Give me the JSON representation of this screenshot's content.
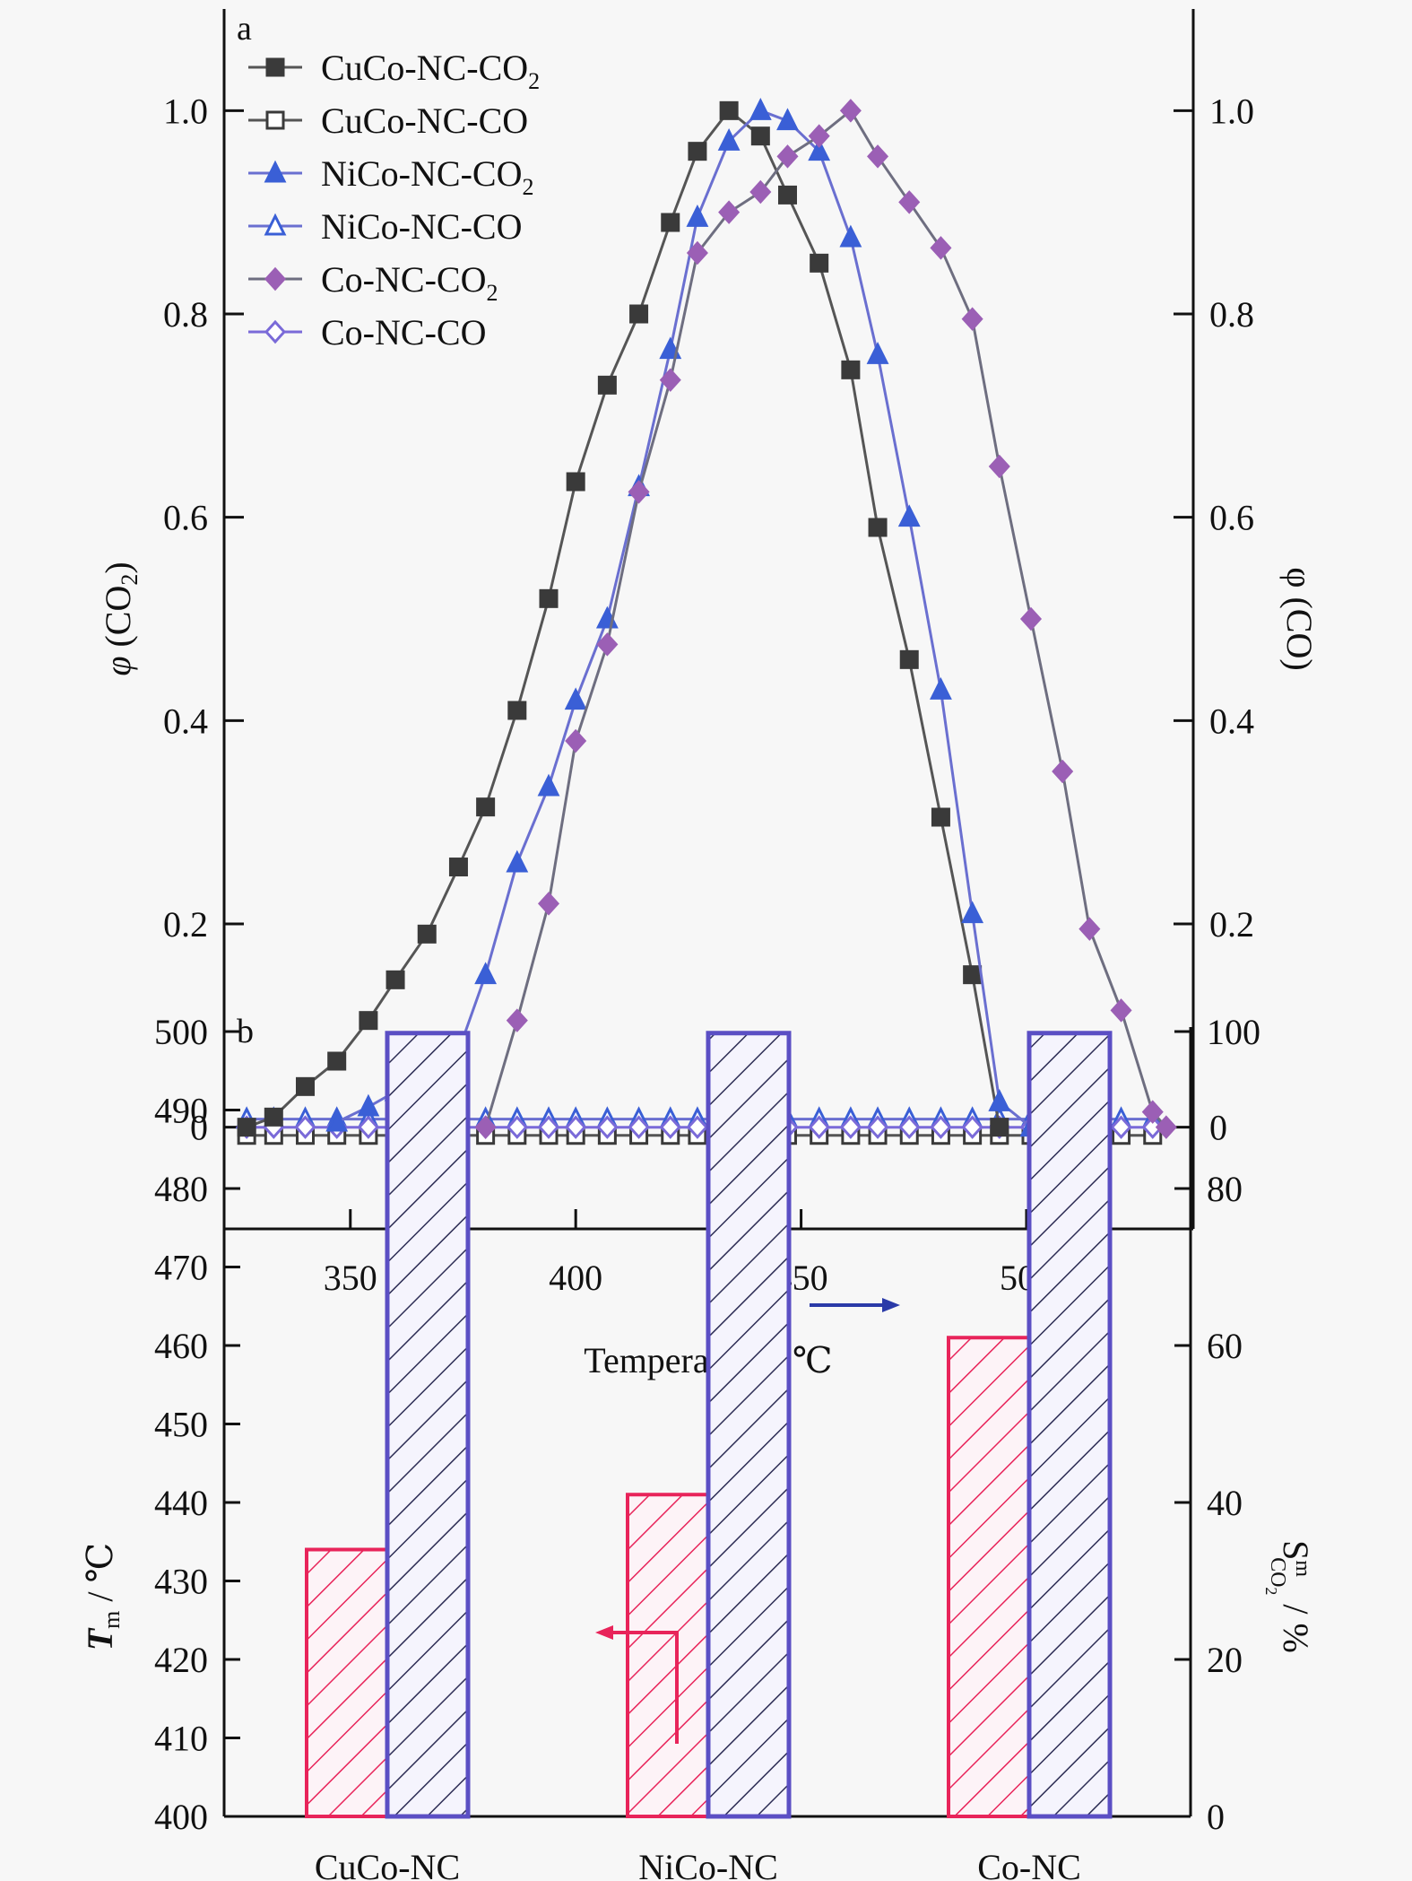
{
  "chart_data": [
    {
      "panel": "a",
      "type": "line",
      "title": "",
      "xlabel": "Temperature / ℃",
      "ylabel": "φ (CO2)",
      "ylabel_parts": {
        "sym": "φ",
        "base": " (CO",
        "sub": "2",
        "end": ")"
      },
      "y2label": "φ (CO)",
      "xlim": [
        322,
        537
      ],
      "ylim": [
        -0.1,
        1.1
      ],
      "y2lim": [
        -0.1,
        1.1
      ],
      "xticks": [
        "350",
        "400",
        "450",
        "500"
      ],
      "xtick_values": [
        350,
        400,
        450,
        500
      ],
      "yticks": [
        "0",
        "0.2",
        "0.4",
        "0.6",
        "0.8",
        "1.0"
      ],
      "ytick_values": [
        0,
        0.2,
        0.4,
        0.6,
        0.8,
        1.0
      ],
      "y2ticks": [
        "0",
        "0.2",
        "0.4",
        "0.6",
        "0.8",
        "1.0"
      ],
      "grid": false,
      "legend_position": "top-left",
      "series": [
        {
          "name": "CuCo-NC-CO2",
          "label_base": "CuCo-NC-CO",
          "label_sub": "2",
          "marker": "square",
          "filled": true,
          "color": "#3a3a3a",
          "line": "#555555",
          "axis": "left",
          "x": [
            327,
            333,
            340,
            347,
            354,
            360,
            367,
            374,
            380,
            387,
            394,
            400,
            407,
            414,
            421,
            427,
            434,
            441,
            447,
            454,
            461,
            467,
            474,
            481,
            488,
            494
          ],
          "y": [
            0.0,
            0.01,
            0.04,
            0.065,
            0.105,
            0.145,
            0.19,
            0.256,
            0.315,
            0.41,
            0.52,
            0.635,
            0.73,
            0.8,
            0.89,
            0.96,
            1.0,
            0.975,
            0.917,
            0.85,
            0.745,
            0.59,
            0.46,
            0.305,
            0.15,
            0.0
          ]
        },
        {
          "name": "CuCo-NC-CO",
          "label_base": "CuCo-NC-CO",
          "label_sub": "",
          "marker": "square",
          "filled": false,
          "color": "#3a3a3a",
          "line": "#555555",
          "axis": "right",
          "x": [
            327,
            333,
            340,
            347,
            354,
            360,
            367,
            374,
            380,
            387,
            394,
            400,
            407,
            414,
            421,
            427,
            434,
            441,
            447,
            454,
            461,
            467,
            474,
            481,
            488,
            494,
            501,
            508,
            514,
            521,
            528
          ],
          "y": [
            -0.008,
            -0.008,
            -0.008,
            -0.008,
            -0.008,
            -0.008,
            -0.008,
            -0.008,
            -0.008,
            -0.008,
            -0.008,
            -0.008,
            -0.008,
            -0.008,
            -0.008,
            -0.008,
            -0.008,
            -0.008,
            -0.008,
            -0.008,
            -0.008,
            -0.008,
            -0.008,
            -0.008,
            -0.008,
            -0.008,
            -0.008,
            -0.008,
            -0.008,
            -0.008,
            -0.008
          ]
        },
        {
          "name": "NiCo-NC-CO2",
          "label_base": "NiCo-NC-CO",
          "label_sub": "2",
          "marker": "triangle",
          "filled": true,
          "color": "#3a5fd6",
          "line": "#6a6fd0",
          "axis": "left",
          "x": [
            347,
            354,
            360,
            367,
            374,
            380,
            387,
            394,
            400,
            407,
            414,
            421,
            427,
            434,
            441,
            447,
            454,
            461,
            467,
            474,
            481,
            488,
            494,
            501
          ],
          "y": [
            0.005,
            0.02,
            0.035,
            0.045,
            0.075,
            0.15,
            0.26,
            0.335,
            0.42,
            0.5,
            0.63,
            0.765,
            0.895,
            0.97,
            1.0,
            0.99,
            0.96,
            0.875,
            0.76,
            0.6,
            0.43,
            0.21,
            0.025,
            0.0
          ]
        },
        {
          "name": "NiCo-NC-CO",
          "label_base": "NiCo-NC-CO",
          "label_sub": "",
          "marker": "triangle",
          "filled": false,
          "color": "#3a5fd6",
          "line": "#6a6fd0",
          "axis": "right",
          "x": [
            327,
            333,
            340,
            347,
            354,
            360,
            367,
            374,
            380,
            387,
            394,
            400,
            407,
            414,
            421,
            427,
            434,
            441,
            447,
            454,
            461,
            467,
            474,
            481,
            488,
            494,
            501,
            508,
            514,
            521,
            528
          ],
          "y": [
            0.008,
            0.008,
            0.008,
            0.008,
            0.008,
            0.008,
            0.008,
            0.008,
            0.008,
            0.008,
            0.008,
            0.008,
            0.008,
            0.008,
            0.008,
            0.008,
            0.008,
            0.008,
            0.008,
            0.008,
            0.008,
            0.008,
            0.008,
            0.008,
            0.008,
            0.008,
            0.008,
            0.008,
            0.008,
            0.008,
            0.008
          ]
        },
        {
          "name": "Co-NC-CO2",
          "label_base": "Co-NC-CO",
          "label_sub": "2",
          "marker": "diamond",
          "filled": true,
          "color": "#9b5fb5",
          "line": "#6e6e80",
          "axis": "left",
          "x": [
            380,
            387,
            394,
            400,
            407,
            414,
            421,
            427,
            434,
            441,
            447,
            454,
            461,
            467,
            474,
            481,
            488,
            494,
            501,
            508,
            514,
            521,
            528,
            531
          ],
          "y": [
            0.0,
            0.105,
            0.22,
            0.38,
            0.475,
            0.625,
            0.735,
            0.86,
            0.9,
            0.92,
            0.955,
            0.975,
            1.0,
            0.955,
            0.91,
            0.865,
            0.795,
            0.65,
            0.5,
            0.35,
            0.195,
            0.115,
            0.015,
            0.0
          ]
        },
        {
          "name": "Co-NC-CO",
          "label_base": "Co-NC-CO",
          "label_sub": "",
          "marker": "diamond",
          "filled": false,
          "color": "#7a6ad8",
          "line": "#7a6ad8",
          "axis": "right",
          "x": [
            327,
            333,
            340,
            347,
            354,
            360,
            367,
            374,
            380,
            387,
            394,
            400,
            407,
            414,
            421,
            427,
            434,
            441,
            447,
            454,
            461,
            467,
            474,
            481,
            488,
            494,
            501,
            508,
            514,
            521,
            528
          ],
          "y": [
            0.0,
            0.0,
            0.0,
            0.0,
            0.0,
            0.0,
            0.0,
            0.0,
            0.0,
            0.0,
            0.0,
            0.0,
            0.0,
            0.0,
            0.0,
            0.0,
            0.0,
            0.0,
            0.0,
            0.0,
            0.0,
            0.0,
            0.0,
            0.0,
            0.0,
            0.0,
            0.0,
            0.0,
            0.0,
            0.0,
            0.0
          ]
        }
      ]
    },
    {
      "panel": "b",
      "type": "bar",
      "title": "",
      "categories": [
        "CuCo-NC",
        "NiCo-NC",
        "Co-NC"
      ],
      "ylabel": "Tm / ℃",
      "ylabel_parts": {
        "sym": "T",
        "sub": "m",
        "end": " / ℃"
      },
      "y2label": "S m CO2 / %",
      "y2label_parts": {
        "base": "S",
        "sup": "m",
        "sub": "CO",
        "subsub": "2",
        "end": " / %"
      },
      "ylim": [
        400,
        500
      ],
      "y2lim": [
        0,
        100
      ],
      "yticks": [
        "400",
        "410",
        "420",
        "430",
        "440",
        "450",
        "460",
        "470",
        "480",
        "490",
        "500"
      ],
      "ytick_values": [
        400,
        410,
        420,
        430,
        440,
        450,
        460,
        470,
        480,
        490,
        500
      ],
      "y2ticks": [
        "0",
        "20",
        "40",
        "60",
        "80",
        "100"
      ],
      "y2tick_values": [
        0,
        20,
        40,
        60,
        80,
        100
      ],
      "grid": false,
      "series": [
        {
          "name": "Tm",
          "axis": "left",
          "color": "#e8245a",
          "hatch": "#e8245a",
          "values": [
            434,
            441,
            461
          ]
        },
        {
          "name": "S_CO2^m",
          "axis": "right",
          "color": "#5b4fc4",
          "hatch": "#333333",
          "values": [
            99.8,
            99.8,
            99.8
          ]
        }
      ],
      "annotations": [
        {
          "type": "arrow",
          "direction": "left",
          "color": "#e8245a",
          "meaning": "Tm bars read on left axis"
        },
        {
          "type": "arrow",
          "direction": "right",
          "color": "#2a3aa8",
          "meaning": "selectivity bars read on right axis"
        }
      ]
    }
  ]
}
